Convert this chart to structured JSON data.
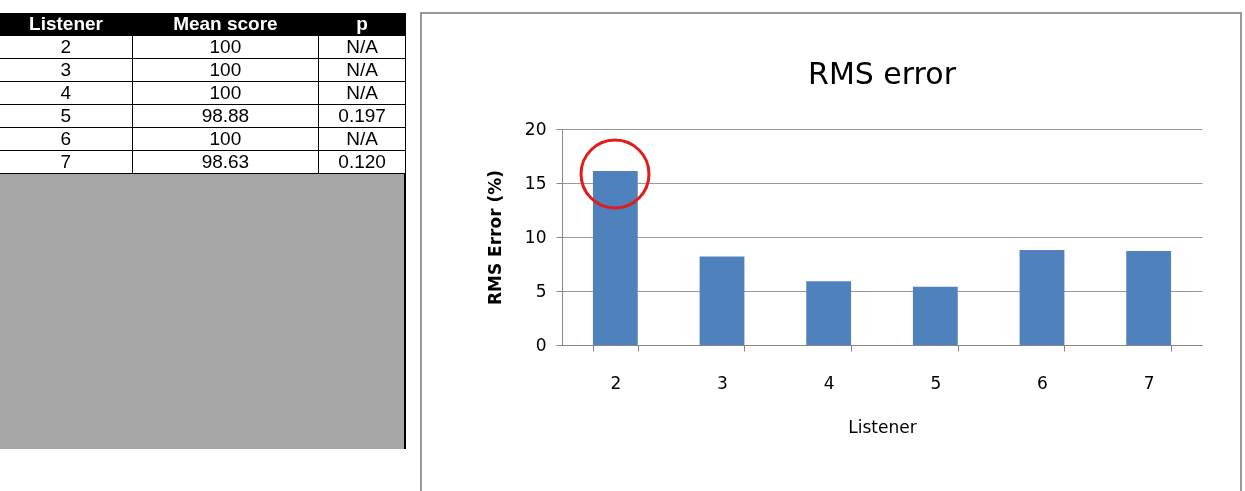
{
  "chart_data": [
    {
      "type": "heatmap",
      "ylabel": "Listener",
      "categories": [
        "Mean score",
        "p"
      ],
      "y_categories": [
        "2",
        "3",
        "4",
        "5",
        "6",
        "7"
      ],
      "cells": [
        [
          null,
          null
        ],
        [
          null,
          null
        ],
        [
          null,
          null
        ],
        [
          null,
          null
        ],
        [
          null,
          null
        ],
        [
          null,
          null
        ]
      ],
      "cell_labels": [
        [
          "100",
          "N/A"
        ],
        [
          "100",
          "N/A"
        ],
        [
          "100",
          "N/A"
        ],
        [
          "98.88",
          "0.197"
        ],
        [
          "100",
          "N/A"
        ],
        [
          "98.63",
          "0.120"
        ]
      ]
    },
    {
      "type": "bar",
      "title": "RMS error",
      "xlabel": "Listener",
      "ylabel": "RMS Error (%)",
      "categories": [
        "2",
        "3",
        "4",
        "5",
        "6",
        "7"
      ],
      "series": [
        {
          "color": "#4f81bd",
          "values": [
            16.1,
            8.2,
            5.9,
            5.4,
            8.8,
            8.7
          ]
        }
      ],
      "ylim": [
        0,
        20
      ],
      "yticks": [
        0,
        5,
        10,
        15,
        20
      ],
      "grid": "y",
      "legend": false
    }
  ]
}
